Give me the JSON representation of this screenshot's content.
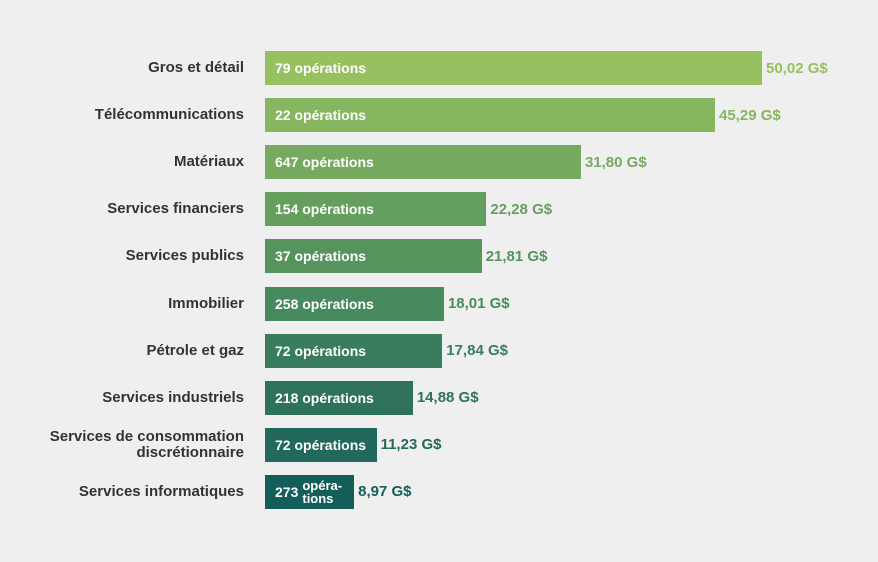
{
  "chart_data": {
    "type": "bar",
    "orientation": "horizontal",
    "title": "",
    "xlabel": "",
    "ylabel": "",
    "unit": "G$",
    "xlim": [
      0,
      50.02
    ],
    "grid": false,
    "categories": [
      "Gros et détail",
      "Télécommunications",
      "Matériaux",
      "Services financiers",
      "Services publics",
      "Immobilier",
      "Pétrole et gaz",
      "Services industriels",
      "Services de consommation discrétionnaire",
      "Services informatiques"
    ],
    "values": [
      50.02,
      45.29,
      31.8,
      22.28,
      21.81,
      18.01,
      17.84,
      14.88,
      11.23,
      8.97
    ],
    "value_labels": [
      "50,02 G$",
      "45,29 G$",
      "31,80 G$",
      "22,28 G$",
      "21,81 G$",
      "18,01 G$",
      "17,84 G$",
      "14,88 G$",
      "11,23 G$",
      "8,97 G$"
    ],
    "operations": [
      79,
      22,
      647,
      154,
      37,
      258,
      72,
      218,
      72,
      273
    ],
    "operation_labels": [
      "79 opérations",
      "22 opérations",
      "647 opérations",
      "154 opérations",
      "37 opérations",
      "258 opérations",
      "72 opérations",
      "218 opérations",
      "72 opérations",
      "opéra-\ntions"
    ],
    "colors": [
      "#97c161",
      "#87b661",
      "#75aa5f",
      "#649f5e",
      "#56935d",
      "#478a5d",
      "#3a7d5c",
      "#2e725d",
      "#22685c",
      "#145e5a"
    ]
  }
}
